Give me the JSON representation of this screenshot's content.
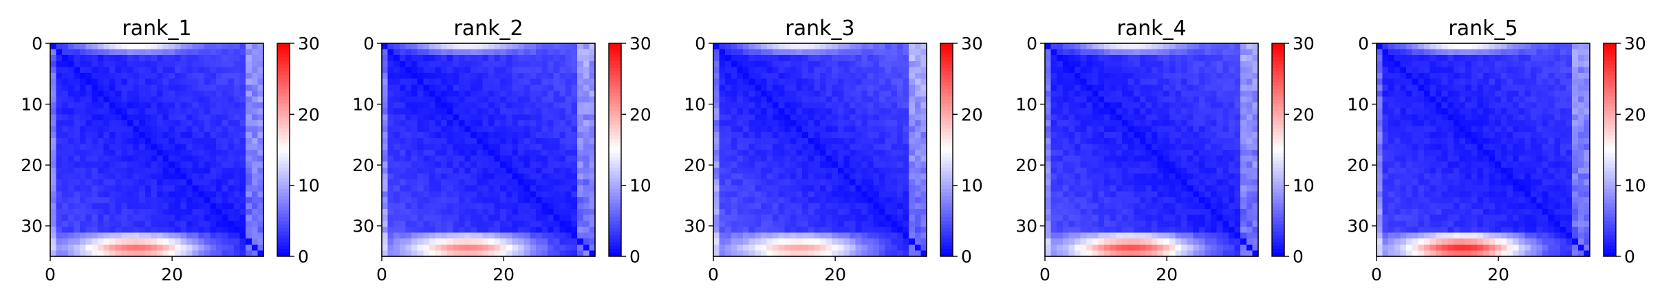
{
  "chart_data": [
    {
      "type": "heatmap",
      "title": "rank_1",
      "n": 36,
      "xlim": [
        0,
        35
      ],
      "ylim": [
        35,
        0
      ],
      "xticks": [
        0,
        20
      ],
      "yticks": [
        0,
        10,
        20,
        30
      ],
      "colorbar": {
        "colormap": "bwr",
        "range": [
          0,
          30
        ],
        "ticks": [
          0,
          10,
          20,
          30
        ]
      },
      "edge_low": 1.5,
      "edge_high": 4.5,
      "bottom_peak": 25,
      "top_peak": 17,
      "seed": 11
    },
    {
      "type": "heatmap",
      "title": "rank_2",
      "n": 36,
      "xlim": [
        0,
        35
      ],
      "ylim": [
        35,
        0
      ],
      "xticks": [
        0,
        20
      ],
      "yticks": [
        0,
        10,
        20,
        30
      ],
      "colorbar": {
        "colormap": "bwr",
        "range": [
          0,
          30
        ],
        "ticks": [
          0,
          10,
          20,
          30
        ]
      },
      "edge_low": 1.5,
      "edge_high": 5,
      "bottom_peak": 24,
      "top_peak": 16,
      "seed": 23
    },
    {
      "type": "heatmap",
      "title": "rank_3",
      "n": 36,
      "xlim": [
        0,
        35
      ],
      "ylim": [
        35,
        0
      ],
      "xticks": [
        0,
        20
      ],
      "yticks": [
        0,
        10,
        20,
        30
      ],
      "colorbar": {
        "colormap": "bwr",
        "range": [
          0,
          30
        ],
        "ticks": [
          0,
          10,
          20,
          30
        ]
      },
      "edge_low": 1.5,
      "edge_high": 5.5,
      "bottom_peak": 22,
      "top_peak": 16,
      "seed": 37
    },
    {
      "type": "heatmap",
      "title": "rank_4",
      "n": 36,
      "xlim": [
        0,
        35
      ],
      "ylim": [
        35,
        0
      ],
      "xticks": [
        0,
        20
      ],
      "yticks": [
        0,
        10,
        20,
        30
      ],
      "colorbar": {
        "colormap": "bwr",
        "range": [
          0,
          30
        ],
        "ticks": [
          0,
          10,
          20,
          30
        ]
      },
      "edge_low": 1.5,
      "edge_high": 5,
      "bottom_peak": 27,
      "top_peak": 16,
      "seed": 41
    },
    {
      "type": "heatmap",
      "title": "rank_5",
      "n": 36,
      "xlim": [
        0,
        35
      ],
      "ylim": [
        35,
        0
      ],
      "xticks": [
        0,
        20
      ],
      "yticks": [
        0,
        10,
        20,
        30
      ],
      "colorbar": {
        "colormap": "bwr",
        "range": [
          0,
          30
        ],
        "ticks": [
          0,
          10,
          20,
          30
        ]
      },
      "edge_low": 1.5,
      "edge_high": 4.5,
      "bottom_peak": 29,
      "top_peak": 17,
      "seed": 53
    }
  ]
}
